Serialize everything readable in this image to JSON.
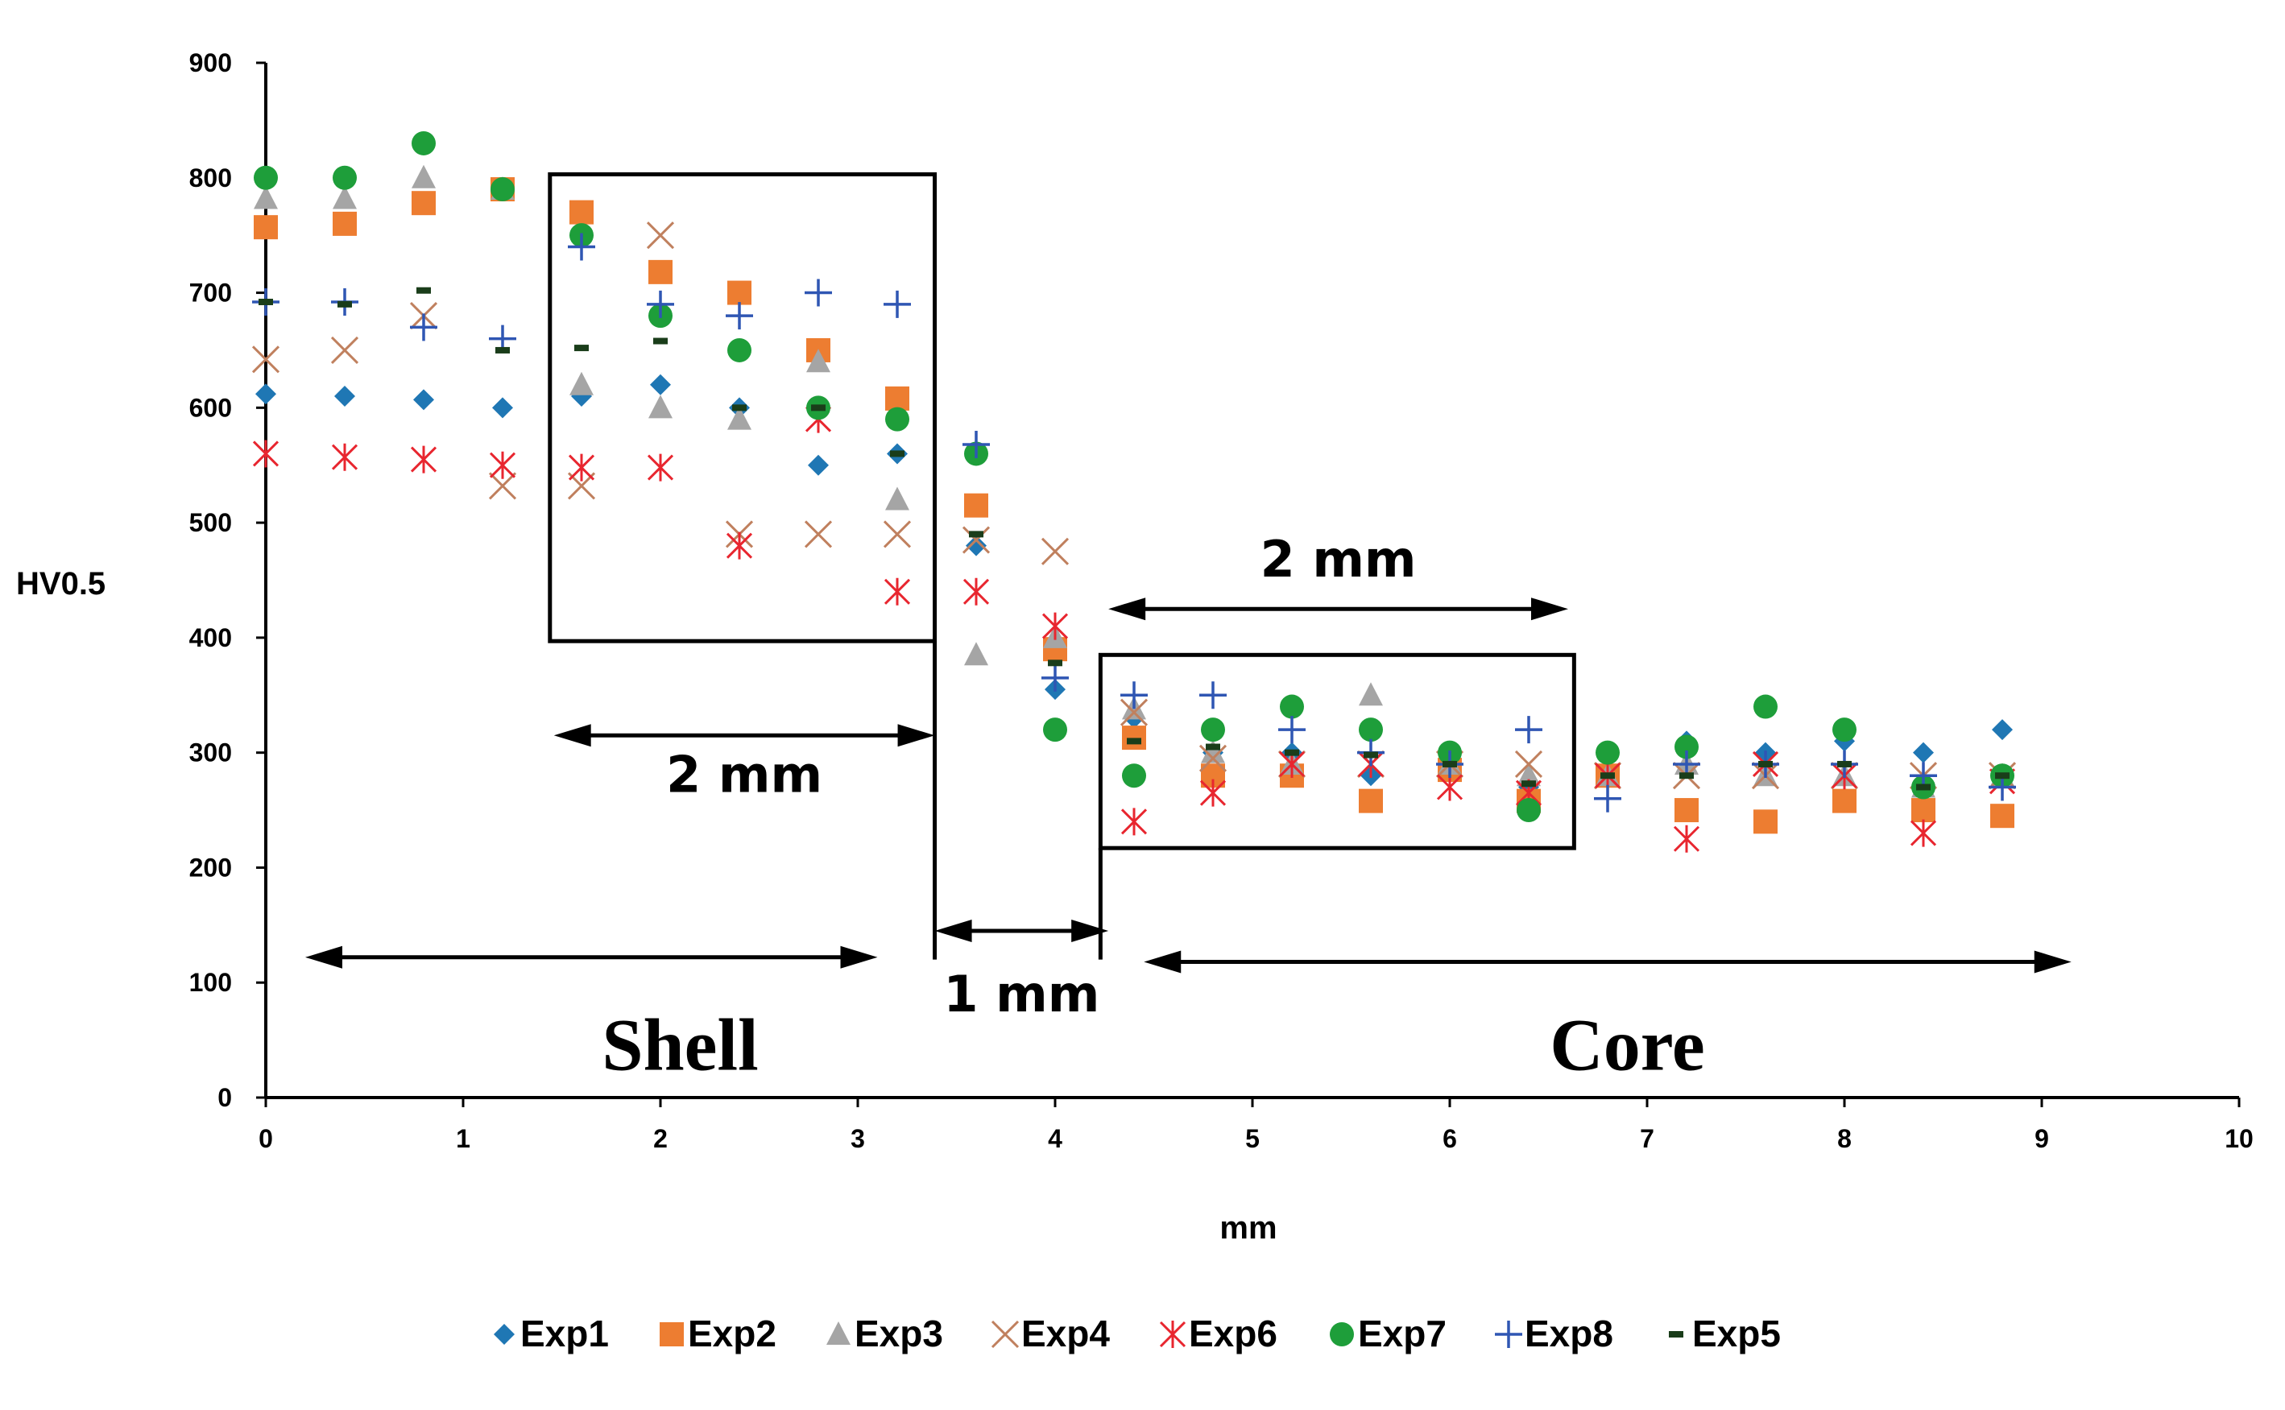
{
  "chart_data": {
    "type": "scatter",
    "title": "",
    "xlabel": "mm",
    "ylabel": "HV0.5",
    "xlim": [
      0,
      10
    ],
    "ylim": [
      0,
      900
    ],
    "x_ticks": [
      0,
      1,
      2,
      3,
      4,
      5,
      6,
      7,
      8,
      9,
      10
    ],
    "y_ticks": [
      0,
      100,
      200,
      300,
      400,
      500,
      600,
      700,
      800,
      900
    ],
    "grid": false,
    "legend_position": "bottom",
    "series": [
      {
        "name": "Exp1",
        "marker": "diamond",
        "color": "#1f77b4",
        "x": [
          0,
          0.4,
          0.8,
          1.2,
          1.6,
          2.0,
          2.4,
          2.8,
          3.2,
          3.6,
          4.0,
          4.4,
          4.8,
          5.2,
          5.6,
          6.0,
          6.4,
          6.8,
          7.2,
          7.6,
          8.0,
          8.4,
          8.8
        ],
        "y": [
          612,
          610,
          607,
          600,
          610,
          620,
          600,
          550,
          560,
          480,
          355,
          330,
          300,
          300,
          280,
          290,
          270,
          280,
          310,
          300,
          310,
          300,
          320
        ]
      },
      {
        "name": "Exp2",
        "marker": "square",
        "color": "#ed7d31",
        "x": [
          0,
          0.4,
          0.8,
          1.2,
          1.6,
          2.0,
          2.4,
          2.8,
          3.2,
          3.6,
          4.0,
          4.4,
          4.8,
          5.2,
          5.6,
          6.0,
          6.4,
          6.8,
          7.2,
          7.6,
          8.0,
          8.4,
          8.8
        ],
        "y": [
          757,
          760,
          778,
          790,
          770,
          718,
          700,
          650,
          608,
          515,
          390,
          313,
          280,
          280,
          258,
          285,
          258,
          280,
          250,
          240,
          258,
          250,
          245
        ]
      },
      {
        "name": "Exp3",
        "marker": "triangle",
        "color": "#a5a5a5",
        "x": [
          0,
          0.4,
          0.8,
          1.2,
          1.6,
          2.0,
          2.4,
          2.8,
          3.2,
          3.6,
          4.0,
          4.4,
          4.8,
          5.2,
          5.6,
          6.0,
          6.4,
          6.8,
          7.2,
          7.6,
          8.0,
          8.4,
          8.8
        ],
        "y": [
          782,
          782,
          800,
          790,
          620,
          600,
          590,
          640,
          520,
          385,
          400,
          338,
          300,
          290,
          350,
          290,
          280,
          280,
          290,
          280,
          280,
          270,
          280
        ]
      },
      {
        "name": "Exp4",
        "marker": "x",
        "color": "#c0805e",
        "x": [
          0,
          0.4,
          0.8,
          1.2,
          1.6,
          2.0,
          2.4,
          2.8,
          3.2,
          3.6,
          4.0,
          4.4,
          4.8,
          5.2,
          5.6,
          6.0,
          6.4,
          6.8,
          7.2,
          7.6,
          8.0,
          8.4,
          8.8
        ],
        "y": [
          642,
          650,
          680,
          532,
          532,
          750,
          490,
          490,
          490,
          485,
          475,
          335,
          295,
          290,
          290,
          290,
          290,
          280,
          280,
          280,
          280,
          280,
          280
        ]
      },
      {
        "name": "Exp6",
        "marker": "asterisk",
        "color": "#e8262f",
        "x": [
          0,
          0.4,
          0.8,
          1.2,
          1.6,
          2.0,
          2.4,
          2.8,
          3.2,
          3.6,
          4.0,
          4.4,
          4.8,
          5.2,
          5.6,
          6.0,
          6.4,
          6.8,
          7.2,
          7.6,
          8.0,
          8.4,
          8.8
        ],
        "y": [
          560,
          557,
          555,
          550,
          548,
          548,
          480,
          590,
          440,
          440,
          410,
          240,
          265,
          290,
          290,
          270,
          265,
          280,
          225,
          290,
          280,
          230,
          275
        ]
      },
      {
        "name": "Exp7",
        "marker": "circle",
        "color": "#1e9e3a",
        "x": [
          0,
          0.4,
          0.8,
          1.2,
          1.6,
          2.0,
          2.4,
          2.8,
          3.2,
          3.6,
          4.0,
          4.4,
          4.8,
          5.2,
          5.6,
          6.0,
          6.4,
          6.8,
          7.2,
          7.6,
          8.0,
          8.4,
          8.8
        ],
        "y": [
          800,
          800,
          830,
          790,
          750,
          680,
          650,
          600,
          590,
          560,
          320,
          280,
          320,
          340,
          320,
          300,
          250,
          300,
          305,
          340,
          320,
          270,
          280
        ]
      },
      {
        "name": "Exp8",
        "marker": "plus",
        "color": "#2f56b3",
        "x": [
          0,
          0.4,
          0.8,
          1.2,
          1.6,
          2.0,
          2.4,
          2.8,
          3.2,
          3.6,
          4.0,
          4.4,
          4.8,
          5.2,
          5.6,
          6.0,
          6.4,
          6.8,
          7.2,
          7.6,
          8.0,
          8.4,
          8.8
        ],
        "y": [
          692,
          692,
          670,
          660,
          740,
          690,
          680,
          700,
          690,
          568,
          365,
          350,
          350,
          320,
          300,
          290,
          320,
          260,
          290,
          290,
          290,
          280,
          270
        ]
      },
      {
        "name": "Exp5",
        "marker": "dash",
        "color": "#1a3d1a",
        "x": [
          0,
          0.4,
          0.8,
          1.2,
          1.6,
          2.0,
          2.4,
          2.8,
          3.2,
          3.6,
          4.0,
          4.4,
          4.8,
          5.2,
          5.6,
          6.0,
          6.4,
          6.8,
          7.2,
          7.6,
          8.0,
          8.4,
          8.8
        ],
        "y": [
          692,
          690,
          702,
          650,
          652,
          658,
          600,
          600,
          560,
          490,
          378,
          310,
          305,
          300,
          298,
          290,
          273,
          280,
          280,
          290,
          290,
          270,
          280
        ]
      }
    ],
    "annotations": [
      {
        "text": "Shell",
        "type": "region-label"
      },
      {
        "text": "Core",
        "type": "region-label"
      },
      {
        "text": "2 mm",
        "type": "dimension",
        "from_x": 1.46,
        "to_x": 3.39,
        "y": 315
      },
      {
        "text": "2 mm",
        "type": "dimension",
        "from_x": 4.27,
        "to_x": 6.6,
        "y": 425
      },
      {
        "text": "1 mm",
        "type": "dimension",
        "from_x": 3.39,
        "to_x": 4.27,
        "y": 145
      },
      {
        "text": "",
        "type": "range",
        "from_x": 0.2,
        "to_x": 3.1,
        "y": 122
      },
      {
        "text": "",
        "type": "range",
        "from_x": 4.45,
        "to_x": 9.15,
        "y": 118
      },
      {
        "text": "",
        "type": "box",
        "x0": 1.44,
        "x1": 3.39,
        "y0": 397,
        "y1": 803
      },
      {
        "text": "",
        "type": "box",
        "x0": 4.23,
        "x1": 6.63,
        "y0": 217,
        "y1": 385
      },
      {
        "text": "",
        "type": "vline",
        "x": 3.39,
        "y0": 120,
        "y1": 397
      },
      {
        "text": "",
        "type": "vline",
        "x": 4.23,
        "y0": 120,
        "y1": 217
      }
    ]
  }
}
